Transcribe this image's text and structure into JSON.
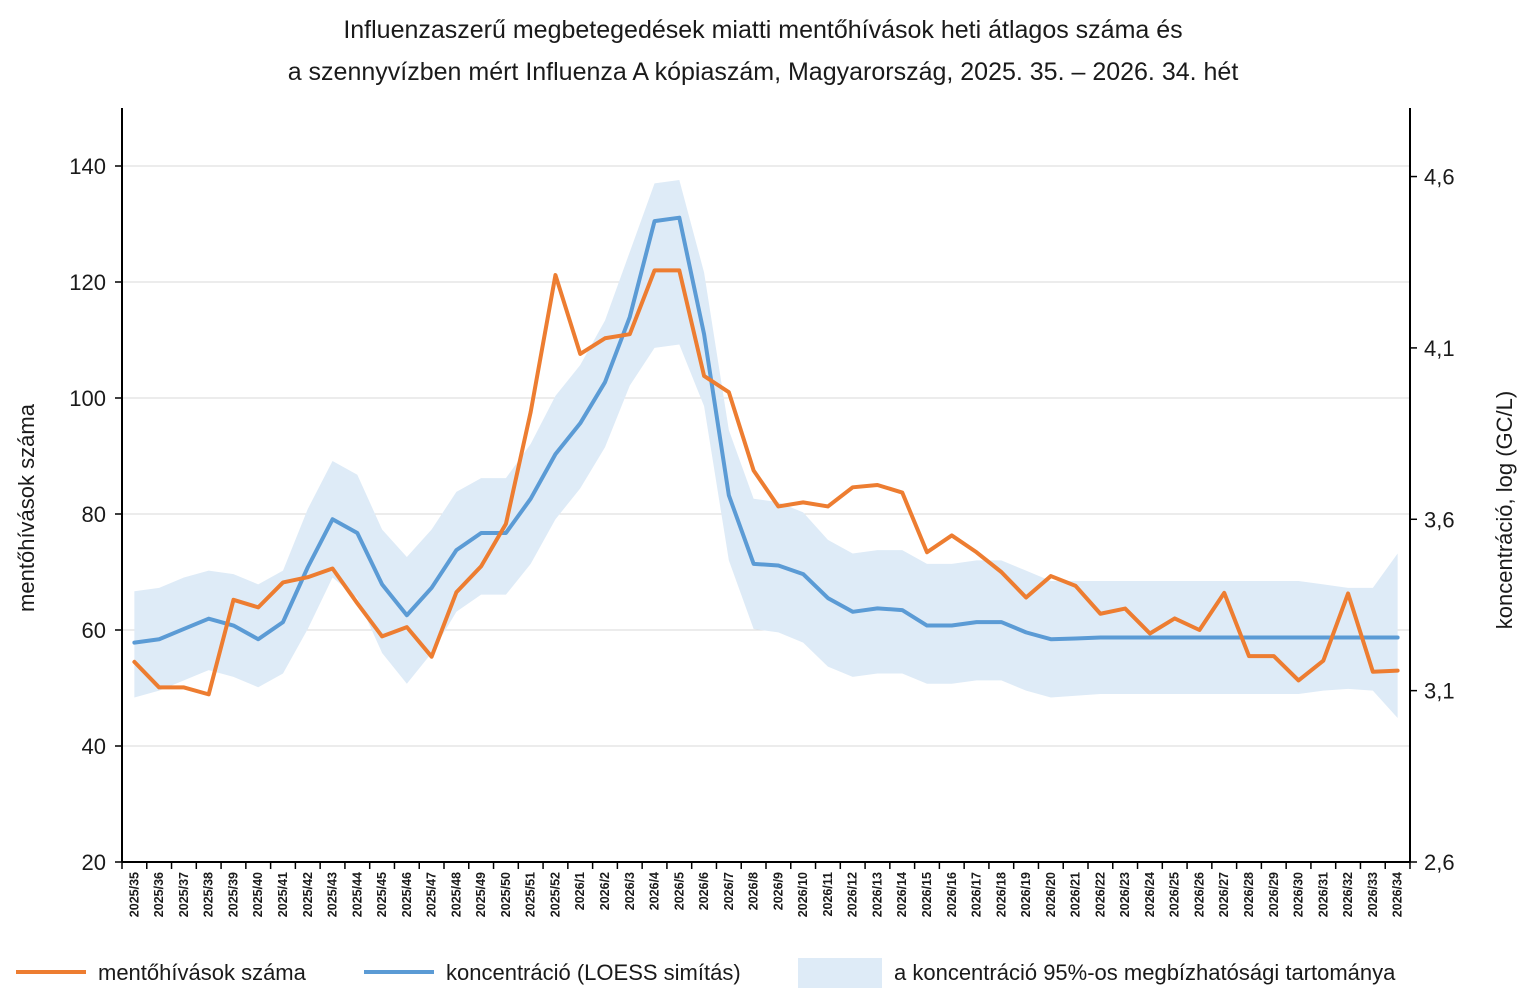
{
  "chart_data": {
    "type": "line",
    "title": [
      "Influenzaszerű megbetegedések miatti mentőhívások heti átlagos száma és",
      "a szennyvízben mért Influenza A kópiaszám, Magyarország, 2025. 35. – 2026. 34. hét"
    ],
    "ylabel": "mentőhívások száma",
    "y2label": "koncentráció, log (GC/L)",
    "ylim": [
      20,
      150
    ],
    "yticks": [
      20,
      40,
      60,
      80,
      100,
      120,
      140
    ],
    "y2lim": [
      2.6,
      4.8
    ],
    "y2ticks": [
      "2,6",
      "3,1",
      "3,6",
      "4,1",
      "4,6"
    ],
    "y2tick_values": [
      2.6,
      3.1,
      3.6,
      4.1,
      4.6
    ],
    "grid": true,
    "legend_position": "bottom",
    "categories": [
      "2025/35",
      "2025/36",
      "2025/37",
      "2025/38",
      "2025/39",
      "2025/40",
      "2025/41",
      "2025/42",
      "2025/43",
      "2025/44",
      "2025/45",
      "2025/46",
      "2025/47",
      "2025/48",
      "2025/49",
      "2025/50",
      "2025/51",
      "2025/52",
      "2026/1",
      "2026/2",
      "2026/3",
      "2026/4",
      "2026/5",
      "2026/6",
      "2026/7",
      "2026/8",
      "2026/9",
      "2026/10",
      "2026/11",
      "2026/12",
      "2026/13",
      "2026/14",
      "2026/15",
      "2026/16",
      "2026/17",
      "2026/18",
      "2026/19",
      "2026/20",
      "2026/21",
      "2026/22",
      "2026/23",
      "2026/24",
      "2026/25",
      "2026/26",
      "2026/27",
      "2026/28",
      "2026/29",
      "2026/30",
      "2026/31",
      "2026/32",
      "2026/33",
      "2026/34"
    ],
    "series": [
      {
        "name": "mentőhívások száma",
        "axis": "left",
        "color": "#ED7D31",
        "values": [
          54.5,
          50.1,
          50.1,
          48.9,
          65.2,
          63.9,
          68.2,
          69.1,
          70.6,
          64.6,
          58.9,
          60.5,
          55.4,
          66.5,
          71.0,
          78.3,
          97.6,
          121.2,
          107.6,
          110.3,
          111.0,
          122.0,
          122.0,
          103.8,
          101.0,
          87.5,
          81.3,
          82.0,
          81.3,
          84.6,
          85.0,
          83.7,
          73.4,
          76.3,
          73.4,
          70.0,
          65.6,
          69.3,
          67.6,
          62.8,
          63.7,
          59.4,
          62.0,
          60.0,
          66.4,
          55.5,
          55.5,
          51.3,
          54.7,
          66.3,
          52.8,
          53.0
        ]
      },
      {
        "name": "koncentráció (LOESS simítás)",
        "axis": "right",
        "color": "#5B9BD5",
        "values": [
          3.24,
          3.25,
          3.28,
          3.31,
          3.29,
          3.25,
          3.3,
          3.46,
          3.6,
          3.56,
          3.41,
          3.32,
          3.4,
          3.51,
          3.56,
          3.56,
          3.66,
          3.79,
          3.88,
          4.0,
          4.19,
          4.47,
          4.48,
          4.14,
          3.67,
          3.47,
          3.465,
          3.44,
          3.37,
          3.33,
          3.34,
          3.335,
          3.29,
          3.29,
          3.3,
          3.3,
          3.27,
          3.25,
          3.252,
          3.255,
          3.255,
          3.255,
          3.255,
          3.255,
          3.255,
          3.255,
          3.255,
          3.255,
          3.255,
          3.255,
          3.255,
          3.255
        ]
      },
      {
        "name": "a koncentráció 95%-os megbízhatósági tartománya",
        "axis": "right",
        "type": "band",
        "color": "#DEEBF7",
        "lower": [
          3.08,
          3.1,
          3.13,
          3.16,
          3.14,
          3.11,
          3.15,
          3.28,
          3.43,
          3.37,
          3.21,
          3.12,
          3.21,
          3.33,
          3.38,
          3.38,
          3.47,
          3.6,
          3.69,
          3.81,
          3.99,
          4.1,
          4.11,
          3.93,
          3.48,
          3.28,
          3.27,
          3.24,
          3.17,
          3.14,
          3.15,
          3.15,
          3.12,
          3.12,
          3.13,
          3.13,
          3.1,
          3.08,
          3.085,
          3.09,
          3.09,
          3.09,
          3.09,
          3.09,
          3.09,
          3.09,
          3.09,
          3.09,
          3.1,
          3.105,
          3.1,
          3.02
        ],
        "upper": [
          3.39,
          3.4,
          3.43,
          3.45,
          3.44,
          3.41,
          3.45,
          3.63,
          3.77,
          3.73,
          3.57,
          3.49,
          3.57,
          3.68,
          3.72,
          3.72,
          3.82,
          3.96,
          4.05,
          4.18,
          4.38,
          4.58,
          4.59,
          4.32,
          3.86,
          3.66,
          3.65,
          3.62,
          3.54,
          3.5,
          3.51,
          3.51,
          3.47,
          3.47,
          3.48,
          3.48,
          3.45,
          3.42,
          3.42,
          3.42,
          3.42,
          3.42,
          3.42,
          3.42,
          3.42,
          3.42,
          3.42,
          3.42,
          3.41,
          3.4,
          3.4,
          3.5
        ]
      }
    ]
  }
}
